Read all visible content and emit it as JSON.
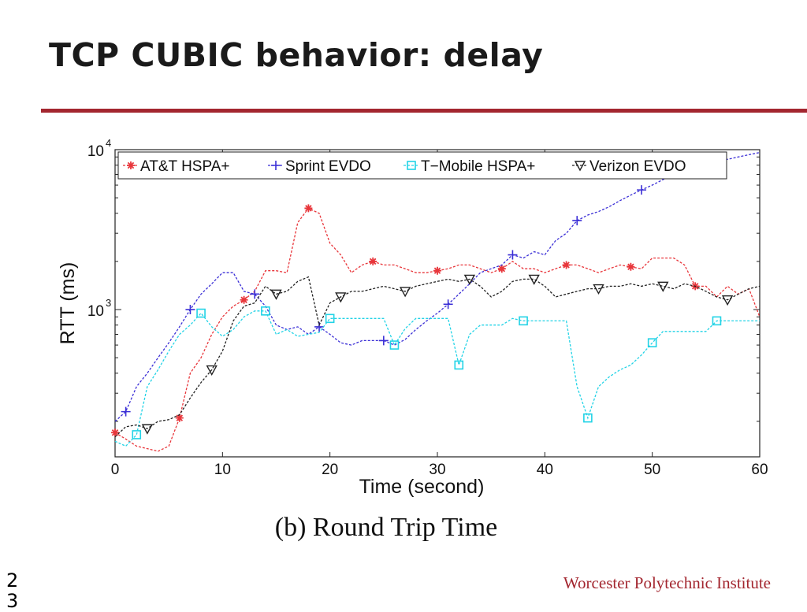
{
  "slide": {
    "title": "TCP CUBIC behavior: delay",
    "page_number": "23",
    "footer": "Worcester Polytechnic Institute"
  },
  "colors": {
    "accent": "#a3262f",
    "att": "#e8363b",
    "sprint": "#3b2fd6",
    "tmobile": "#22d3e6",
    "verizon": "#222222"
  },
  "chart_data": {
    "type": "line",
    "caption": "(b) Round Trip Time",
    "xlabel": "Time (second)",
    "ylabel": "RTT (ms)",
    "xlim": [
      0,
      60
    ],
    "ylim": [
      120,
      10000
    ],
    "yscale": "log",
    "x_ticks": [
      0,
      10,
      20,
      30,
      40,
      50,
      60
    ],
    "y_tick_labels": [
      {
        "base": "10",
        "exp": "3",
        "value": 1000
      },
      {
        "base": "10",
        "exp": "4",
        "value": 10000
      }
    ],
    "legend_position": "top",
    "grid": false,
    "series": [
      {
        "name": "AT&T HSPA+",
        "color": "#e8363b",
        "marker": "star",
        "x": [
          0,
          1,
          2,
          3,
          4,
          5,
          6,
          7,
          8,
          9,
          10,
          11,
          12,
          13,
          14,
          15,
          16,
          17,
          18,
          19,
          20,
          21,
          22,
          23,
          24,
          25,
          26,
          27,
          28,
          29,
          30,
          31,
          32,
          33,
          34,
          35,
          36,
          37,
          38,
          39,
          40,
          41,
          42,
          43,
          44,
          45,
          46,
          47,
          48,
          49,
          50,
          51,
          52,
          53,
          54,
          55,
          56,
          57,
          58,
          59,
          60
        ],
        "y": [
          170,
          155,
          140,
          135,
          130,
          140,
          210,
          400,
          500,
          700,
          900,
          1050,
          1150,
          1300,
          1750,
          1750,
          1700,
          3500,
          4300,
          4000,
          2600,
          2200,
          1700,
          1900,
          2000,
          1900,
          1900,
          1800,
          1700,
          1700,
          1750,
          1800,
          1900,
          1900,
          1800,
          1700,
          1800,
          2000,
          1800,
          1800,
          1700,
          1800,
          1900,
          1900,
          1800,
          1700,
          1800,
          1900,
          1850,
          1800,
          2100,
          2100,
          2100,
          1900,
          1400,
          1400,
          1200,
          1400,
          1250,
          1350,
          900
        ],
        "markers_at": [
          0,
          6,
          12,
          18,
          24,
          30,
          36,
          42,
          48,
          54
        ]
      },
      {
        "name": "Sprint EVDO",
        "color": "#3b2fd6",
        "marker": "plus",
        "x": [
          0,
          1,
          2,
          3,
          4,
          5,
          6,
          7,
          8,
          9,
          10,
          11,
          12,
          13,
          14,
          15,
          16,
          17,
          18,
          19,
          20,
          21,
          22,
          23,
          24,
          25,
          26,
          27,
          28,
          29,
          30,
          31,
          32,
          33,
          34,
          35,
          36,
          37,
          38,
          39,
          40,
          41,
          42,
          43,
          44,
          45,
          46,
          47,
          48,
          49,
          50,
          51,
          52,
          53,
          54,
          55,
          56,
          57,
          58,
          59,
          60
        ],
        "y": [
          200,
          230,
          330,
          400,
          500,
          620,
          780,
          1000,
          1250,
          1450,
          1700,
          1700,
          1300,
          1250,
          1050,
          800,
          750,
          780,
          700,
          780,
          700,
          620,
          600,
          640,
          640,
          640,
          600,
          650,
          750,
          850,
          950,
          1080,
          1250,
          1450,
          1700,
          1800,
          1900,
          2200,
          2100,
          2300,
          2200,
          2700,
          3000,
          3600,
          3900,
          4100,
          4400,
          4800,
          5200,
          5600,
          6000,
          6500,
          7000,
          7400,
          7800,
          8100,
          8400,
          8700,
          9000,
          9300,
          9600
        ],
        "markers_at": [
          1,
          7,
          13,
          19,
          25,
          31,
          37,
          43,
          49
        ]
      },
      {
        "name": "T−Mobile HSPA+",
        "color": "#22d3e6",
        "marker": "square",
        "x": [
          0,
          1,
          2,
          3,
          4,
          5,
          6,
          7,
          8,
          9,
          10,
          11,
          12,
          13,
          14,
          15,
          16,
          17,
          18,
          19,
          20,
          21,
          22,
          23,
          24,
          25,
          26,
          27,
          28,
          29,
          30,
          31,
          32,
          33,
          34,
          35,
          36,
          37,
          38,
          39,
          40,
          41,
          42,
          43,
          44,
          45,
          46,
          47,
          48,
          49,
          50,
          51,
          52,
          53,
          54,
          55,
          56,
          57,
          58,
          59,
          60
        ],
        "y": [
          150,
          140,
          165,
          330,
          420,
          550,
          700,
          800,
          950,
          780,
          680,
          750,
          900,
          980,
          980,
          700,
          750,
          680,
          700,
          720,
          880,
          880,
          880,
          880,
          880,
          880,
          600,
          760,
          880,
          880,
          880,
          880,
          450,
          700,
          800,
          800,
          800,
          880,
          850,
          850,
          850,
          850,
          850,
          330,
          210,
          330,
          380,
          420,
          450,
          520,
          620,
          730,
          730,
          730,
          730,
          730,
          850,
          850,
          850,
          850,
          850
        ],
        "markers_at": [
          2,
          8,
          14,
          20,
          26,
          32,
          38,
          44,
          50,
          56
        ]
      },
      {
        "name": "Verizon EVDO",
        "color": "#222222",
        "marker": "triangle",
        "x": [
          0,
          1,
          2,
          3,
          4,
          5,
          6,
          7,
          8,
          9,
          10,
          11,
          12,
          13,
          14,
          15,
          16,
          17,
          18,
          19,
          20,
          21,
          22,
          23,
          24,
          25,
          26,
          27,
          28,
          29,
          30,
          31,
          32,
          33,
          34,
          35,
          36,
          37,
          38,
          39,
          40,
          41,
          42,
          43,
          44,
          45,
          46,
          47,
          48,
          49,
          50,
          51,
          52,
          53,
          54,
          55,
          56,
          57,
          58,
          59,
          60
        ],
        "y": [
          160,
          185,
          190,
          180,
          200,
          205,
          220,
          280,
          350,
          420,
          550,
          850,
          1050,
          1100,
          1400,
          1250,
          1300,
          1500,
          1600,
          800,
          1100,
          1200,
          1300,
          1300,
          1350,
          1400,
          1350,
          1300,
          1400,
          1450,
          1500,
          1550,
          1500,
          1550,
          1400,
          1200,
          1300,
          1500,
          1550,
          1550,
          1400,
          1200,
          1250,
          1300,
          1350,
          1350,
          1400,
          1400,
          1450,
          1400,
          1450,
          1400,
          1350,
          1450,
          1400,
          1300,
          1200,
          1150,
          1250,
          1350,
          1400
        ],
        "markers_at": [
          3,
          9,
          15,
          21,
          27,
          33,
          39,
          45,
          51,
          57
        ]
      }
    ]
  }
}
